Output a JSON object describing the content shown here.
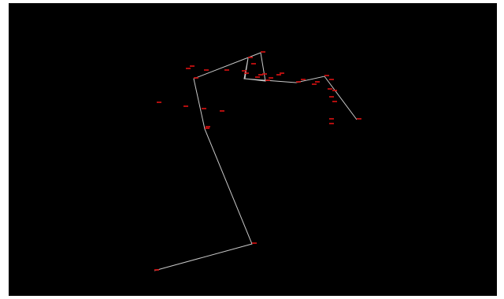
{
  "colors": {
    "background": "#000000",
    "page": "#ffffff",
    "path": "#c8c8c8",
    "labels": "#d01010"
  },
  "labels": [
    "",
    "",
    "",
    "",
    "",
    "",
    "",
    "",
    "",
    "",
    "",
    "",
    "",
    "",
    "",
    "",
    "",
    "",
    "",
    "",
    "",
    "",
    "",
    "",
    "",
    "",
    "",
    "",
    "",
    "",
    "",
    "",
    "",
    "",
    "",
    "",
    "",
    ""
  ]
}
